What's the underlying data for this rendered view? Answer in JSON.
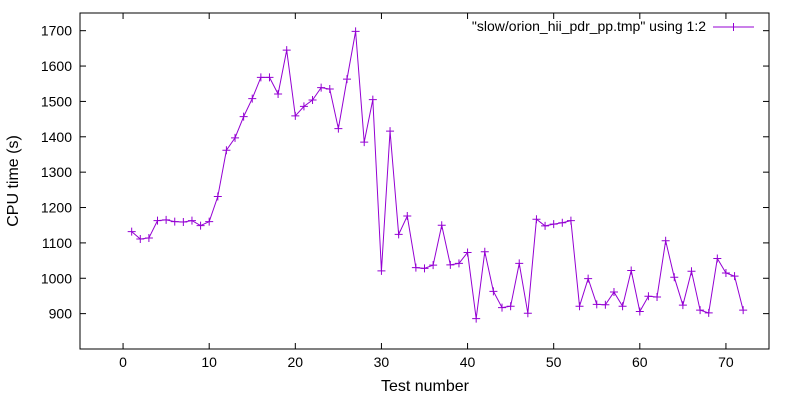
{
  "chart_data": {
    "type": "line",
    "title": "",
    "xlabel": "Test number",
    "ylabel": "CPU time (s)",
    "xlim": [
      -5,
      75
    ],
    "ylim": [
      800,
      1750
    ],
    "xticks": [
      0,
      10,
      20,
      30,
      40,
      50,
      60,
      70
    ],
    "yticks": [
      900,
      1000,
      1100,
      1200,
      1300,
      1400,
      1500,
      1600,
      1700
    ],
    "grid": false,
    "legend_position": "top-right",
    "series": [
      {
        "name": "\"slow/orion_hii_pdr_pp.tmp\" using 1:2",
        "color": "#9400d3",
        "marker": "plus",
        "x": [
          1,
          2,
          3,
          4,
          5,
          6,
          7,
          8,
          9,
          10,
          11,
          12,
          13,
          14,
          15,
          16,
          17,
          18,
          19,
          20,
          21,
          22,
          23,
          24,
          25,
          26,
          27,
          28,
          29,
          30,
          31,
          32,
          33,
          34,
          35,
          36,
          37,
          38,
          39,
          40,
          41,
          42,
          43,
          44,
          45,
          46,
          47,
          48,
          49,
          50,
          51,
          52,
          53,
          54,
          55,
          56,
          57,
          58,
          59,
          60,
          61,
          62,
          63,
          64,
          65,
          66,
          67,
          68,
          69,
          70,
          71,
          72
        ],
        "values": [
          1132,
          1111,
          1114,
          1163,
          1165,
          1160,
          1159,
          1163,
          1149,
          1160,
          1231,
          1362,
          1397,
          1457,
          1508,
          1568,
          1568,
          1521,
          1645,
          1459,
          1486,
          1504,
          1539,
          1535,
          1423,
          1563,
          1698,
          1385,
          1505,
          1021,
          1416,
          1124,
          1176,
          1030,
          1028,
          1037,
          1150,
          1038,
          1042,
          1073,
          886,
          1075,
          963,
          917,
          921,
          1042,
          901,
          1167,
          1148,
          1153,
          1157,
          1163,
          921,
          999,
          926,
          925,
          961,
          921,
          1022,
          906,
          949,
          947,
          1106,
          1003,
          924,
          1020,
          910,
          902,
          1056,
          1015,
          1006,
          910
        ]
      }
    ]
  }
}
